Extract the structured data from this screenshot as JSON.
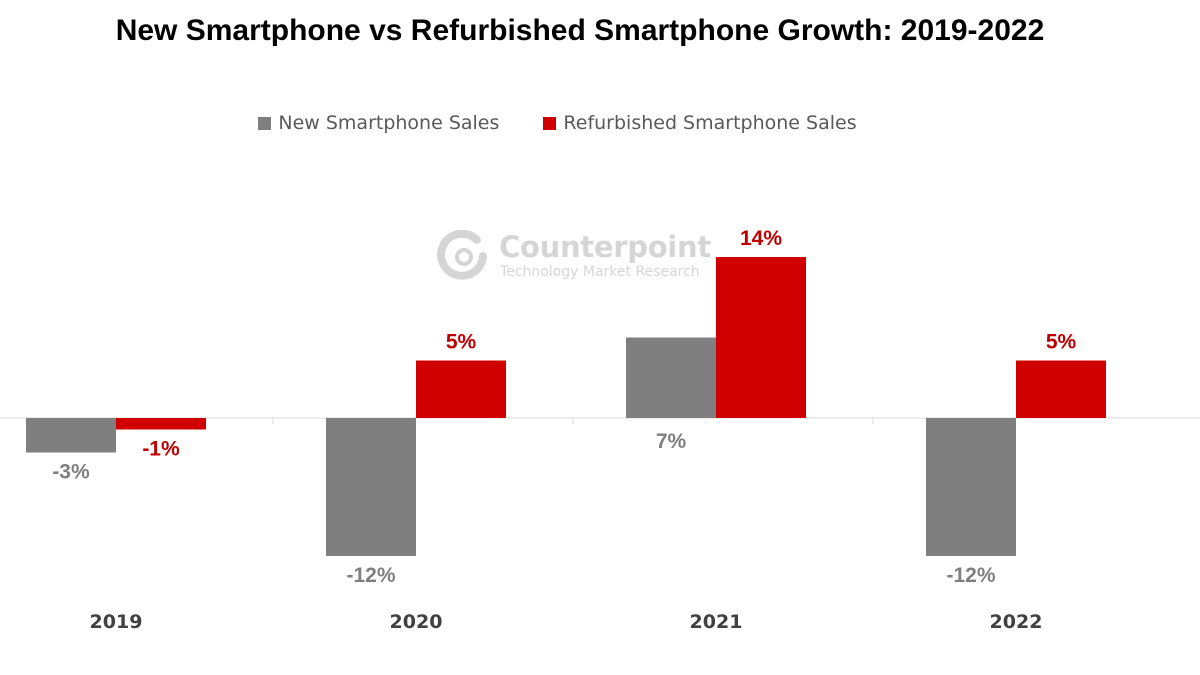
{
  "chart_data": {
    "type": "bar",
    "title": "New Smartphone vs Refurbished Smartphone Growth: 2019-2022",
    "categories": [
      "2019",
      "2020",
      "2021",
      "2022"
    ],
    "series": [
      {
        "name": "New Smartphone Sales",
        "values": [
          -3,
          -12,
          7,
          -12
        ],
        "labels": [
          "-3%",
          "-12%",
          "7%",
          "-12%"
        ],
        "color": "#7f7f7f"
      },
      {
        "name": "Refurbished Smartphone Sales",
        "values": [
          -1,
          5,
          14,
          5
        ],
        "labels": [
          "-1%",
          "5%",
          "14%",
          "5%"
        ],
        "color": "#d00000"
      }
    ],
    "ylim": [
      -15,
      16
    ],
    "grid": false,
    "legend_position": "top-center"
  },
  "watermark": {
    "name": "Counterpoint",
    "tagline": "Technology Market Research"
  }
}
